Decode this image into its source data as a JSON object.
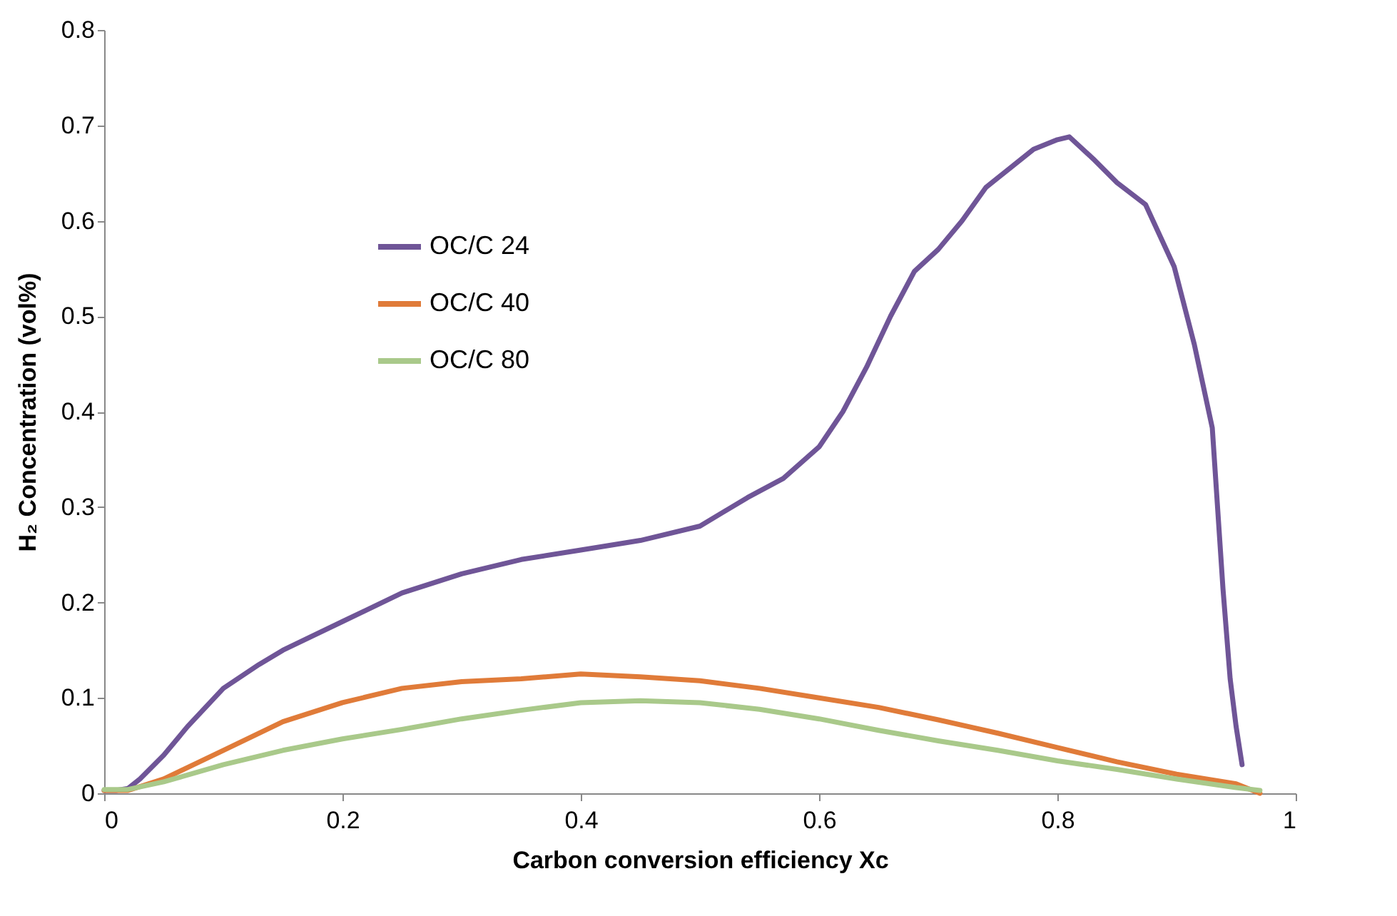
{
  "chart_data": {
    "type": "line",
    "xlabel": "Carbon conversion efficiency Xc",
    "ylabel": "H₂ Concentration (vol%)",
    "xlim": [
      0,
      1
    ],
    "ylim": [
      0,
      0.8
    ],
    "xticks": [
      0,
      0.2,
      0.4,
      0.6,
      0.8,
      1
    ],
    "yticks": [
      0,
      0.1,
      0.2,
      0.3,
      0.4,
      0.5,
      0.6,
      0.7,
      0.8
    ],
    "grid": false,
    "legend": "top left",
    "marker": "none",
    "line_style": "solid",
    "series": [
      {
        "name": "OC/C 24",
        "color": "#6f5597",
        "x": [
          0,
          0.01,
          0.02,
          0.03,
          0.05,
          0.07,
          0.1,
          0.13,
          0.15,
          0.2,
          0.25,
          0.3,
          0.35,
          0.4,
          0.45,
          0.5,
          0.54,
          0.57,
          0.6,
          0.62,
          0.64,
          0.66,
          0.68,
          0.7,
          0.72,
          0.74,
          0.76,
          0.78,
          0.8,
          0.81,
          0.83,
          0.85,
          0.874,
          0.898,
          0.915,
          0.93,
          0.939,
          0.945,
          0.95,
          0.955
        ],
        "values": [
          0.003,
          0.003,
          0.005,
          0.015,
          0.04,
          0.07,
          0.11,
          0.135,
          0.15,
          0.18,
          0.21,
          0.23,
          0.245,
          0.255,
          0.265,
          0.28,
          0.31,
          0.33,
          0.363,
          0.4,
          0.447,
          0.5,
          0.547,
          0.57,
          0.6,
          0.635,
          0.655,
          0.675,
          0.685,
          0.688,
          0.665,
          0.64,
          0.617,
          0.552,
          0.47,
          0.383,
          0.214,
          0.12,
          0.07,
          0.03
        ]
      },
      {
        "name": "OC/C 40",
        "color": "#e07b39",
        "x": [
          0,
          0.02,
          0.05,
          0.1,
          0.15,
          0.2,
          0.25,
          0.3,
          0.35,
          0.4,
          0.45,
          0.5,
          0.55,
          0.6,
          0.65,
          0.7,
          0.75,
          0.8,
          0.85,
          0.9,
          0.95,
          0.97
        ],
        "values": [
          0.003,
          0.003,
          0.015,
          0.045,
          0.075,
          0.095,
          0.11,
          0.117,
          0.12,
          0.125,
          0.122,
          0.118,
          0.11,
          0.1,
          0.09,
          0.077,
          0.063,
          0.048,
          0.033,
          0.02,
          0.01,
          0
        ]
      },
      {
        "name": "OC/C 80",
        "color": "#a9c98a",
        "x": [
          0,
          0.02,
          0.05,
          0.1,
          0.15,
          0.2,
          0.25,
          0.3,
          0.35,
          0.4,
          0.45,
          0.5,
          0.55,
          0.6,
          0.65,
          0.7,
          0.75,
          0.8,
          0.85,
          0.9,
          0.95,
          0.97
        ],
        "values": [
          0.004,
          0.004,
          0.012,
          0.03,
          0.045,
          0.057,
          0.067,
          0.078,
          0.087,
          0.095,
          0.097,
          0.095,
          0.088,
          0.078,
          0.066,
          0.055,
          0.045,
          0.034,
          0.025,
          0.015,
          0.006,
          0.003
        ]
      }
    ]
  }
}
